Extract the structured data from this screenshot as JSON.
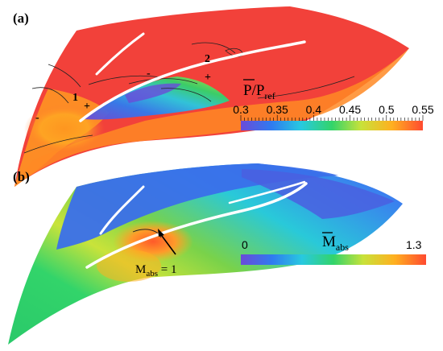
{
  "panels": {
    "a": {
      "label": "(a)"
    },
    "b": {
      "label": "(b)"
    }
  },
  "markers": {
    "one": "1",
    "two": "2",
    "plus": "+",
    "minus": "-"
  },
  "colorbar_a": {
    "title_main": "P/P",
    "title_sub": "ref",
    "ticks": [
      "0.3",
      "0.35",
      "0.4",
      "0.45",
      "0.5",
      "0.55"
    ],
    "range": [
      0.3,
      0.55
    ],
    "colors": [
      "#6a4bd8",
      "#2f7bf0",
      "#28c9e0",
      "#32d46a",
      "#c8e23a",
      "#ffb020",
      "#ff4a30"
    ]
  },
  "colorbar_b": {
    "title_main": "M",
    "title_sub": "abs",
    "ticks": [
      "0",
      "1.3"
    ],
    "range": [
      0,
      1.3
    ],
    "colors": [
      "#6a4bd8",
      "#2f7bf0",
      "#28c9e0",
      "#32d46a",
      "#c8e23a",
      "#ffb020",
      "#ff4a30"
    ]
  },
  "annotation": {
    "main": "M",
    "sub": "abs",
    "rest": " = 1"
  }
}
